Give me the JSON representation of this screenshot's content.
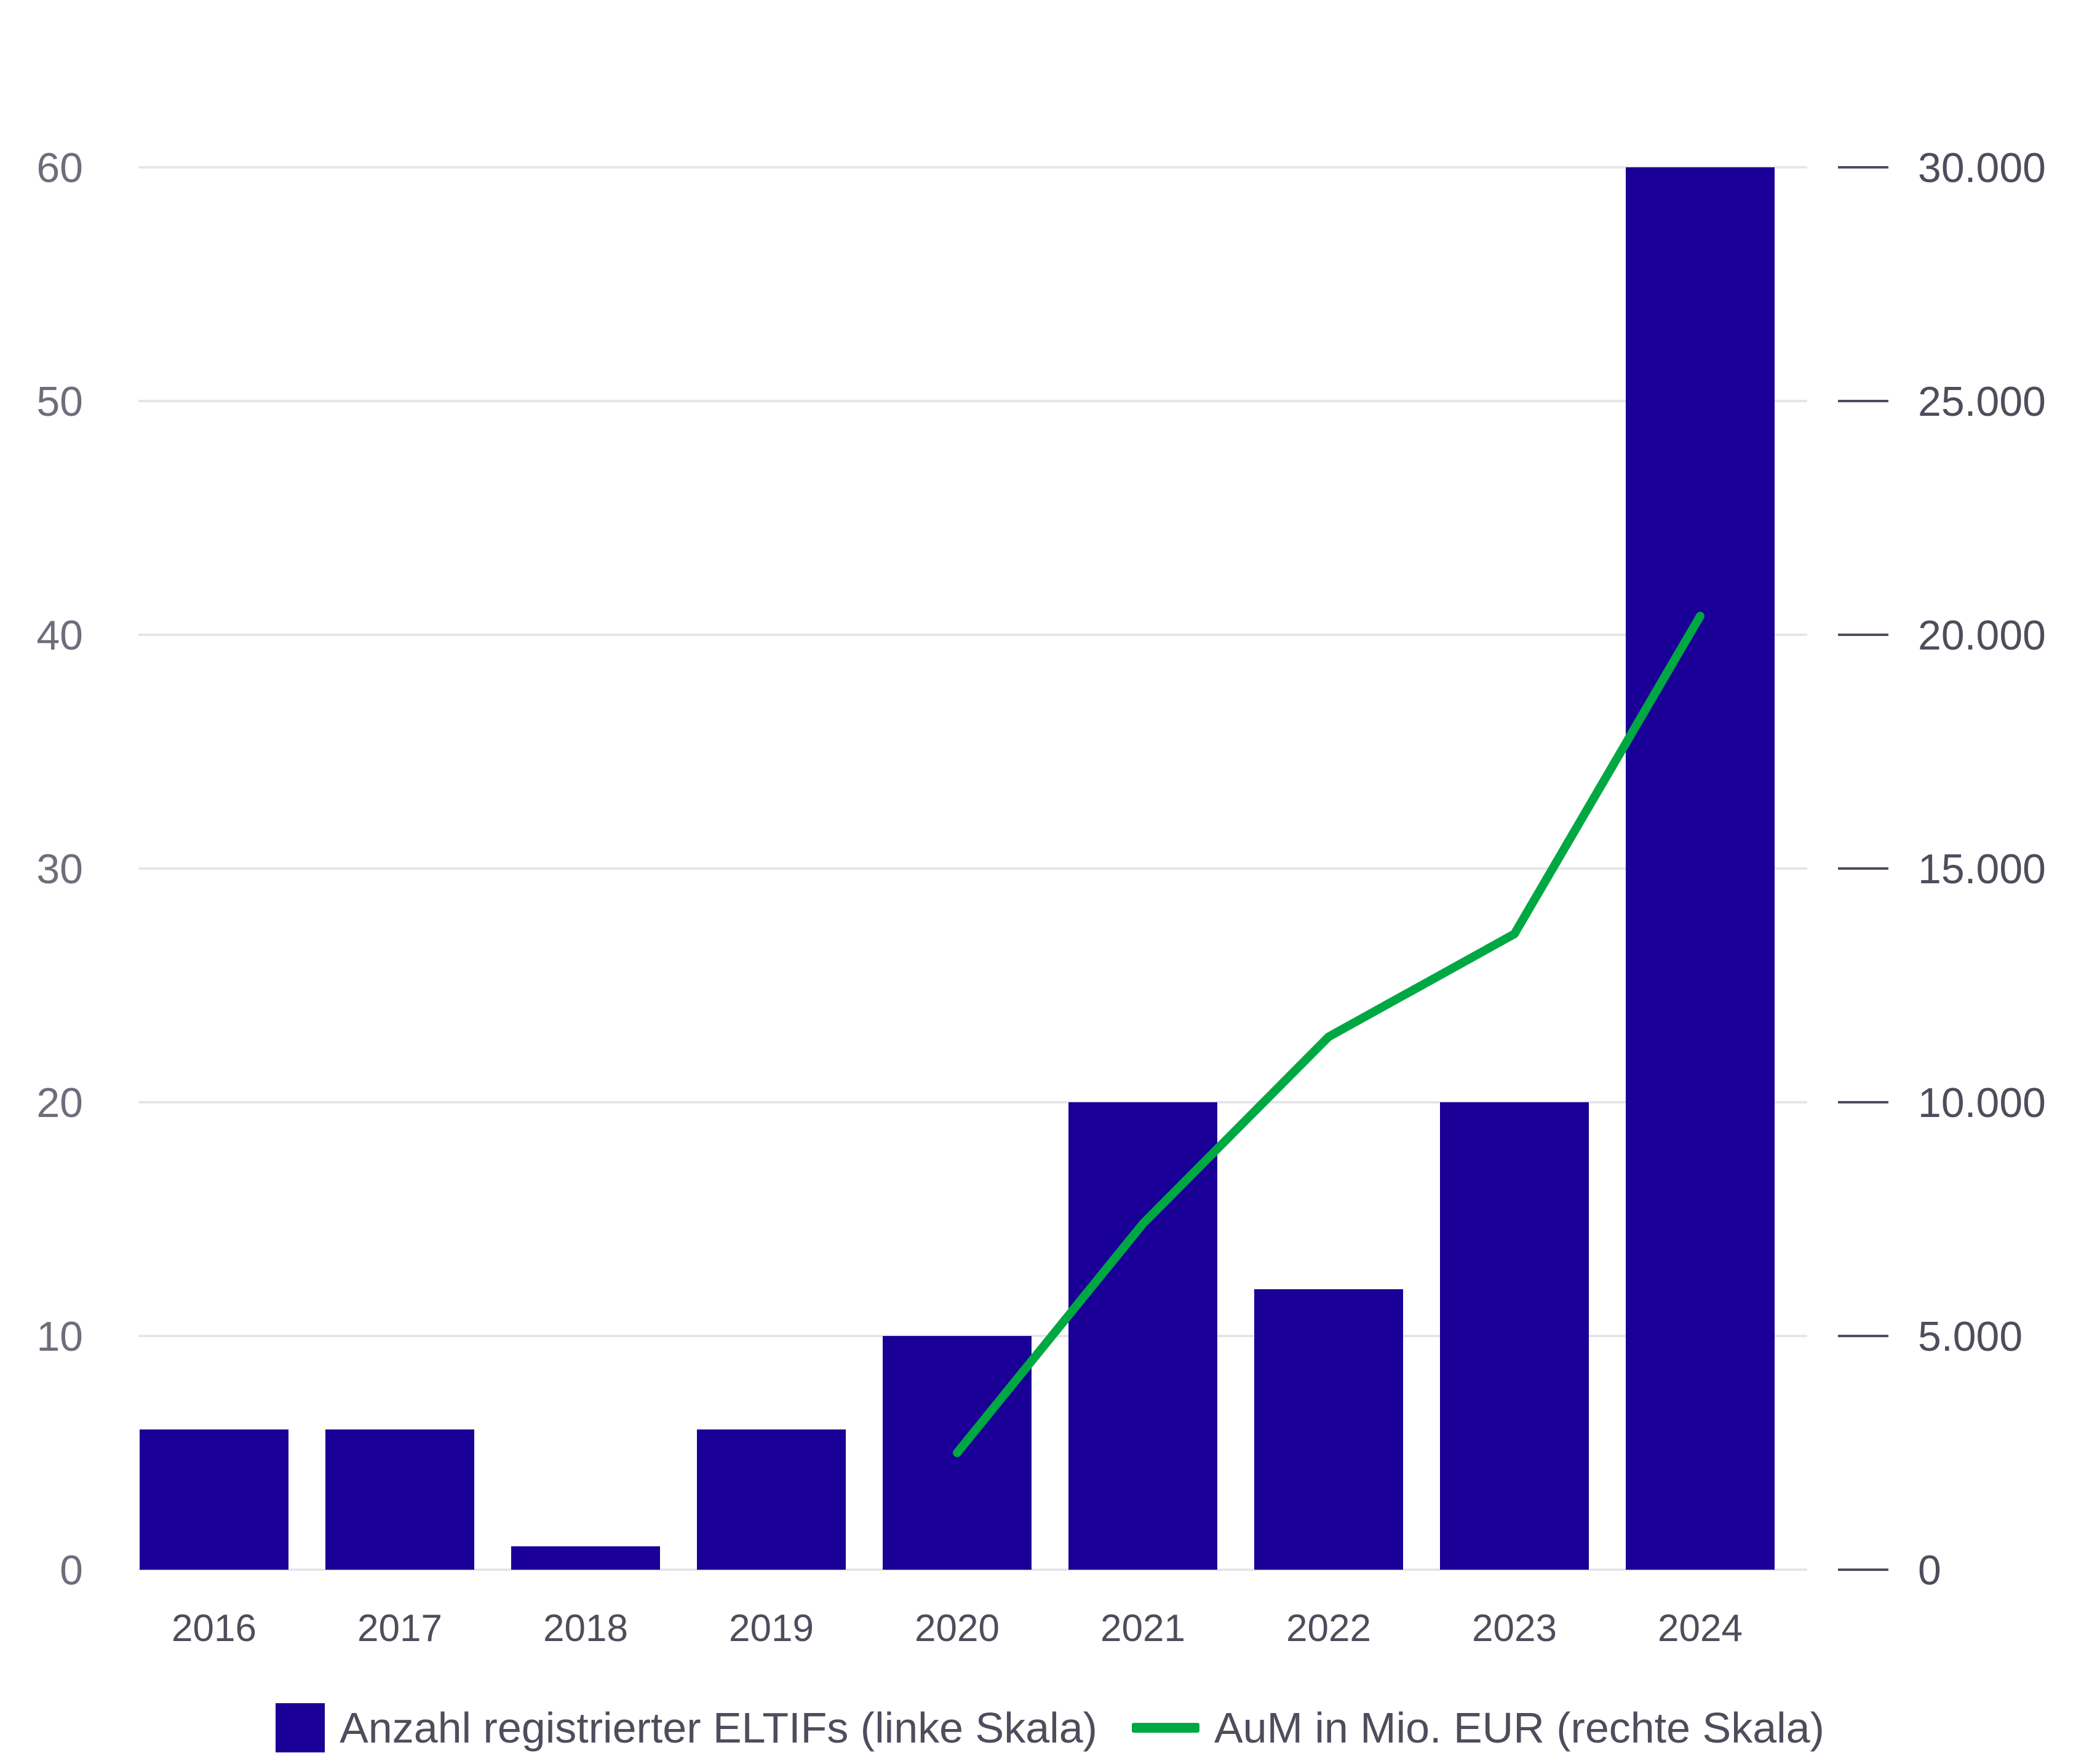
{
  "colors": {
    "bar": "#1a0096",
    "line": "#00a843",
    "grid": "#e6e6ea",
    "left_tick_text": "#6f6d7c",
    "right_tick_text": "#4f4d5c",
    "x_tick_text": "#4f4d5c"
  },
  "chart_data": {
    "type": "bar",
    "categories": [
      "2016",
      "2017",
      "2018",
      "2019",
      "2020",
      "2021",
      "2022",
      "2023",
      "2024"
    ],
    "series": [
      {
        "name": "Anzahl registrierter ELTIFs (linke Skala)",
        "type": "bar",
        "axis": "left",
        "values": [
          6,
          6,
          1,
          6,
          10,
          20,
          12,
          20,
          60
        ]
      },
      {
        "name": "AuM in Mio. EUR (rechte Skala)",
        "type": "line",
        "axis": "right",
        "values": [
          null,
          null,
          null,
          null,
          2500,
          7400,
          11400,
          13600,
          20400
        ]
      }
    ],
    "y_left": {
      "ylim": [
        0,
        60
      ],
      "ticks": [
        0,
        10,
        20,
        30,
        40,
        50,
        60
      ],
      "tick_labels": [
        "0",
        "10",
        "20",
        "30",
        "40",
        "50",
        "60"
      ]
    },
    "y_right": {
      "ylim": [
        0,
        30000
      ],
      "ticks": [
        0,
        5000,
        10000,
        15000,
        20000,
        25000,
        30000
      ],
      "tick_labels": [
        "0",
        "5.000",
        "10.000",
        "15.000",
        "20.000",
        "25.000",
        "30.000"
      ]
    },
    "grid": true,
    "legend_position": "bottom-center",
    "title": "",
    "xlabel": "",
    "ylabel": ""
  }
}
